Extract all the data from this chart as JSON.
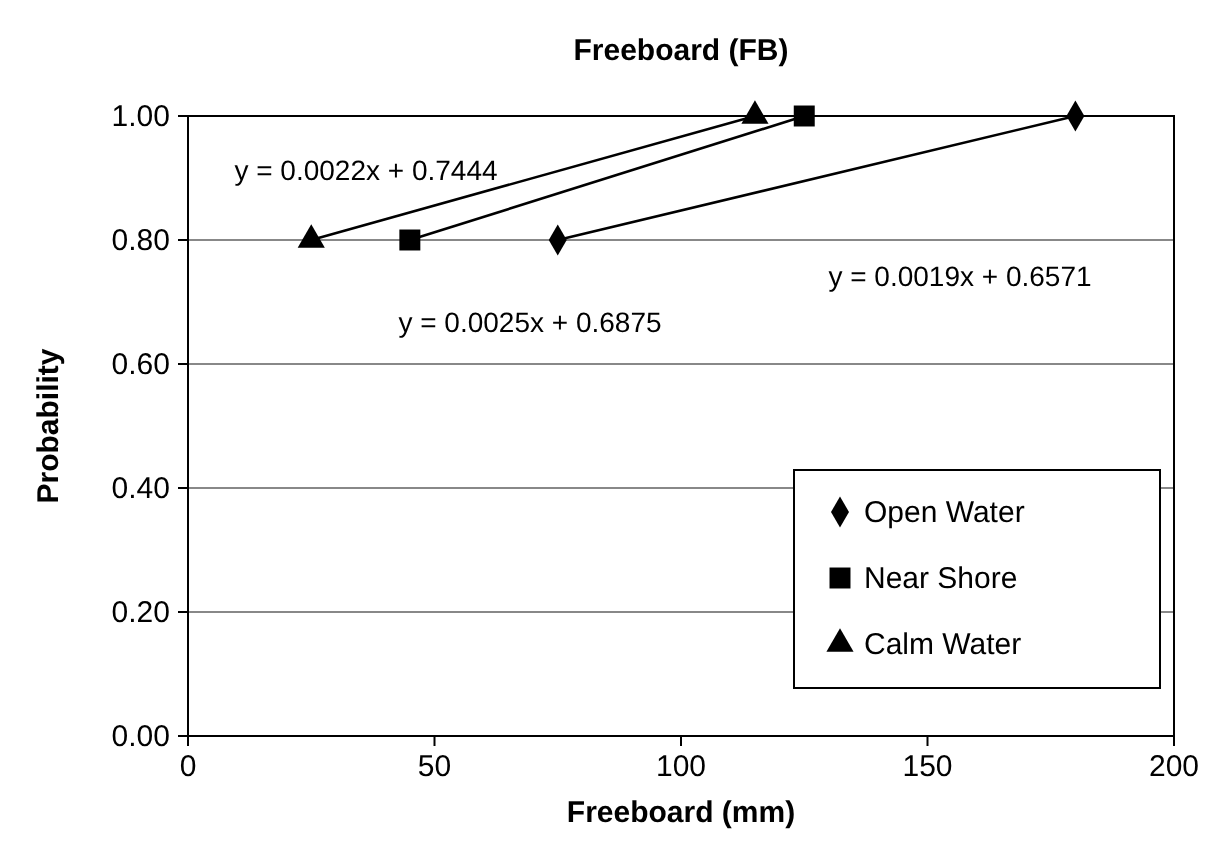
{
  "chart_data": {
    "type": "line",
    "title": "Freeboard (FB)",
    "xlabel": "Freeboard (mm)",
    "ylabel": "Probability",
    "series": [
      {
        "name": "Open Water",
        "color": "#000000",
        "x": [
          75,
          180
        ],
        "values": [
          0.8,
          1.0
        ],
        "marker": "diamond"
      },
      {
        "name": "Near Shore",
        "color": "#000000",
        "x": [
          45,
          125
        ],
        "values": [
          0.8,
          1.0
        ],
        "marker": "square"
      },
      {
        "name": "Calm Water",
        "color": "#000000",
        "x": [
          25,
          115
        ],
        "values": [
          0.8,
          1.0
        ],
        "marker": "triangle"
      }
    ],
    "xlim": [
      0,
      200
    ],
    "xticks": [
      0,
      50,
      100,
      150,
      200
    ],
    "ylim": [
      0,
      1
    ],
    "yticks": [
      {
        "value": 0,
        "label": "0.00"
      },
      {
        "value": 0.2,
        "label": "0.20"
      },
      {
        "value": 0.4,
        "label": "0.40"
      },
      {
        "value": 0.6,
        "label": "0.60"
      },
      {
        "value": 0.8,
        "label": "0.80"
      },
      {
        "value": 1,
        "label": "1.00"
      }
    ],
    "grid": "y",
    "legend": "bottom right",
    "line_style": "solid",
    "annotations": [
      "y = 0.0022x + 0.7444",
      "y = 0.0019x + 0.6571",
      "y = 0.0025x + 0.6875"
    ]
  }
}
